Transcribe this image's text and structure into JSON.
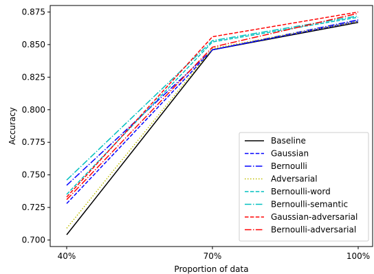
{
  "chart_data": {
    "type": "line",
    "x": [
      "40%",
      "70%",
      "100%"
    ],
    "xlabel": "Proportion of data",
    "ylabel": "Accuracy",
    "ylim": [
      0.695,
      0.88
    ],
    "yticks": [
      "0.700",
      "0.725",
      "0.750",
      "0.775",
      "0.800",
      "0.825",
      "0.850",
      "0.875"
    ],
    "grid": false,
    "legend_position": "lower-right",
    "series": [
      {
        "name": "Baseline",
        "values": [
          0.704,
          0.846,
          0.867
        ],
        "color": "#000000",
        "dash": "solid"
      },
      {
        "name": "Gaussian",
        "values": [
          0.728,
          0.846,
          0.868
        ],
        "color": "#0000ff",
        "dash": "dashed"
      },
      {
        "name": "Bernoulli",
        "values": [
          0.742,
          0.846,
          0.869
        ],
        "color": "#0000ff",
        "dash": "dashdot"
      },
      {
        "name": "Adversarial",
        "values": [
          0.709,
          0.847,
          0.868
        ],
        "color": "#bfbf00",
        "dash": "dotted"
      },
      {
        "name": "Bernoulli-word",
        "values": [
          0.735,
          0.852,
          0.871
        ],
        "color": "#00bfbf",
        "dash": "dashed"
      },
      {
        "name": "Bernoulli-semantic",
        "values": [
          0.746,
          0.853,
          0.872
        ],
        "color": "#00bfbf",
        "dash": "dashdot"
      },
      {
        "name": "Gaussian-adversarial",
        "values": [
          0.733,
          0.856,
          0.875
        ],
        "color": "#ff0000",
        "dash": "dashed"
      },
      {
        "name": "Bernoulli-adversarial",
        "values": [
          0.731,
          0.848,
          0.874
        ],
        "color": "#ff0000",
        "dash": "dashdot"
      }
    ]
  }
}
